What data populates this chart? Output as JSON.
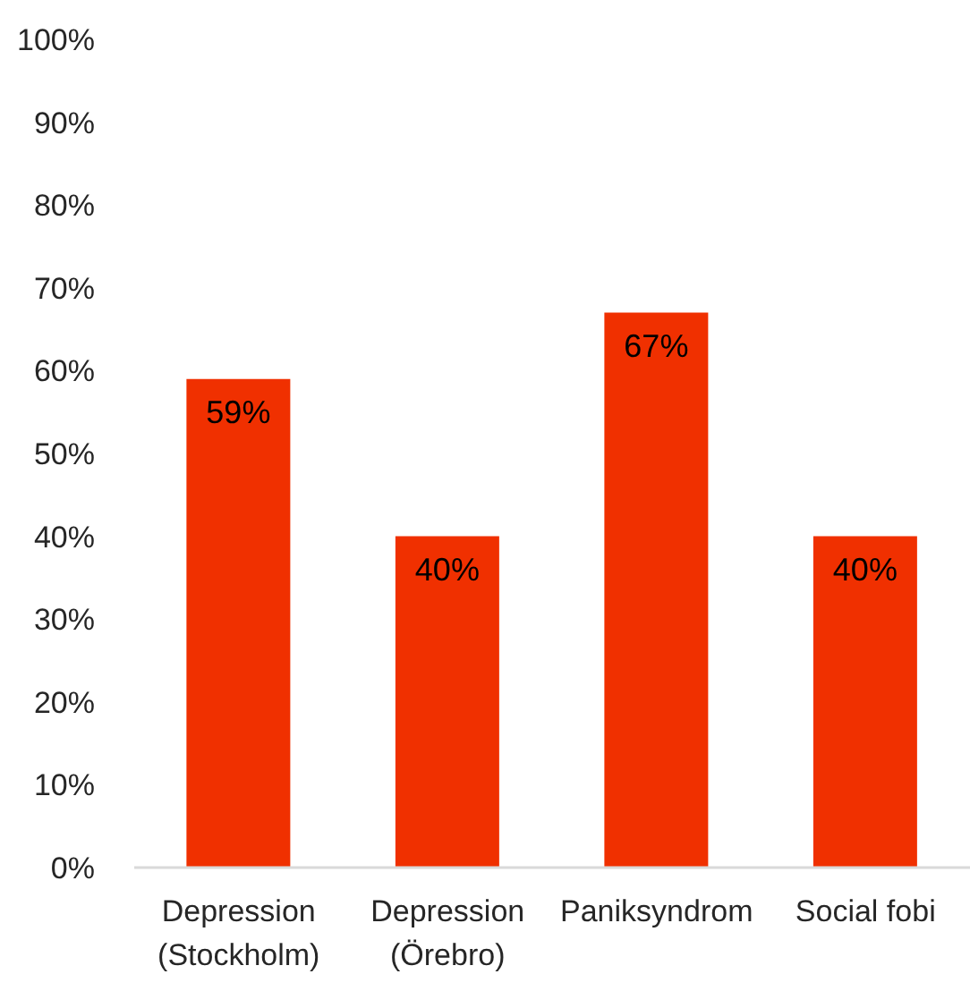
{
  "chart_data": {
    "type": "bar",
    "categories": [
      "Depression (Stockholm)",
      "Depression (Örebro)",
      "Paniksyndrom",
      "Social fobi"
    ],
    "values": [
      59,
      40,
      67,
      40
    ],
    "value_labels": [
      "59%",
      "40%",
      "67%",
      "40%"
    ],
    "color": "#f03000",
    "ylim": [
      0,
      100
    ],
    "yticks": [
      {
        "value": 0,
        "label": "0%"
      },
      {
        "value": 10,
        "label": "10%"
      },
      {
        "value": 20,
        "label": "20%"
      },
      {
        "value": 30,
        "label": "30%"
      },
      {
        "value": 40,
        "label": "40%"
      },
      {
        "value": 50,
        "label": "50%"
      },
      {
        "value": 60,
        "label": "60%"
      },
      {
        "value": 70,
        "label": "70%"
      },
      {
        "value": 80,
        "label": "80%"
      },
      {
        "value": 90,
        "label": "90%"
      },
      {
        "value": 100,
        "label": "100%"
      }
    ]
  }
}
